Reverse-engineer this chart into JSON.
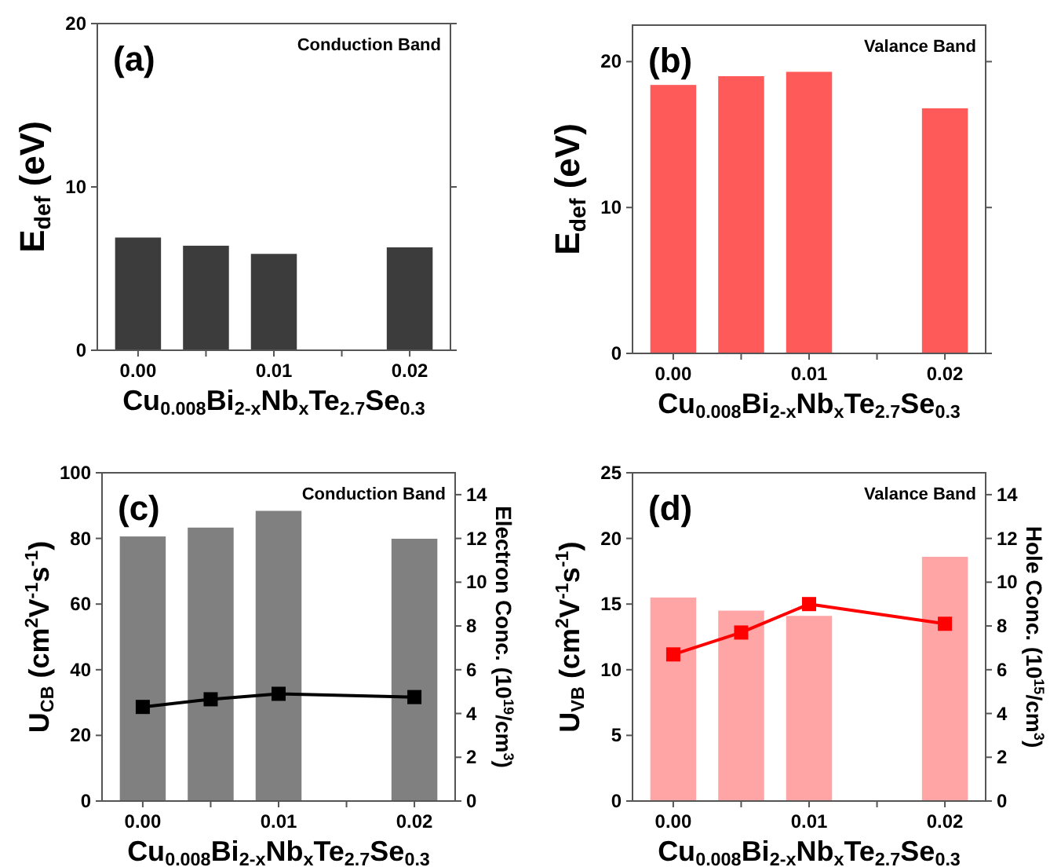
{
  "chart_data": [
    {
      "type": "bar",
      "x": [
        0,
        0.005,
        0.01,
        0.02
      ],
      "values": [
        6.9,
        6.4,
        5.9,
        6.3
      ],
      "color": "#3c3c3c",
      "xlim": [
        -0.003,
        0.023
      ],
      "xticks": [
        {
          "value": 0,
          "label": "0.00"
        },
        {
          "value": 0.005,
          "label": null
        },
        {
          "value": 0.01,
          "label": "0.01"
        },
        {
          "value": 0.015,
          "label": null
        },
        {
          "value": 0.02,
          "label": "0.02"
        }
      ],
      "ylim": [
        0,
        20
      ],
      "yticks": [
        0,
        10,
        20
      ],
      "xlabel": "Cu$_{0.008}$Bi$_{2-x}$Nb$_{x}$Te$_{2.7}$Se$_{0.3}$",
      "ylabel": "E$_{def}$ (eV)",
      "annotations": [
        "(a)",
        "Conduction Band"
      ],
      "grid": false
    },
    {
      "type": "bar",
      "x": [
        0,
        0.005,
        0.01,
        0.02
      ],
      "values": [
        18.4,
        19.0,
        19.3,
        16.8
      ],
      "color": "#ff5a5a",
      "xlim": [
        -0.003,
        0.023
      ],
      "xticks": [
        {
          "value": 0,
          "label": "0.00"
        },
        {
          "value": 0.005,
          "label": null
        },
        {
          "value": 0.01,
          "label": "0.01"
        },
        {
          "value": 0.015,
          "label": null
        },
        {
          "value": 0.02,
          "label": "0.02"
        }
      ],
      "ylim": [
        0,
        22.5
      ],
      "yticks": [
        0,
        10,
        20
      ],
      "xlabel": "Cu$_{0.008}$Bi$_{2-x}$Nb$_{x}$Te$_{2.7}$Se$_{0.3}$",
      "ylabel": "E$_{def}$ (eV)",
      "annotations": [
        "(b)",
        "Valance Band"
      ],
      "grid": false
    },
    {
      "type": "bar",
      "x": [
        0,
        0.005,
        0.01,
        0.02
      ],
      "series": [
        {
          "color": "#808080",
          "values": [
            80.6,
            83.3,
            88.4,
            79.9
          ]
        },
        {
          "type": "line",
          "axis": "y2",
          "color": "#000000",
          "values": [
            4.3,
            4.65,
            4.9,
            4.75
          ]
        }
      ],
      "marker": "square",
      "xlim": [
        -0.003,
        0.023
      ],
      "xticks": [
        {
          "value": 0,
          "label": "0.00"
        },
        {
          "value": 0.005,
          "label": null
        },
        {
          "value": 0.01,
          "label": "0.01"
        },
        {
          "value": 0.015,
          "label": null
        },
        {
          "value": 0.02,
          "label": "0.02"
        }
      ],
      "ylim": [
        0,
        100
      ],
      "yticks": [
        0,
        20,
        40,
        60,
        80,
        100
      ],
      "y2lim": [
        0,
        15
      ],
      "y2ticks": [
        0,
        2,
        4,
        6,
        8,
        10,
        12,
        14
      ],
      "xlabel": "Cu$_{0.008}$Bi$_{2-x}$Nb$_{x}$Te$_{2.7}$Se$_{0.3}$",
      "ylabel": "U$_{CB}$ (cm$^{2}$V$^{-1}$s$^{-1}$)",
      "y2label": "Electron Conc. (10$^{19}$/cm$^{3}$)",
      "annotations": [
        "(c)",
        "Conduction Band"
      ],
      "grid": false
    },
    {
      "type": "bar",
      "x": [
        0,
        0.005,
        0.01,
        0.02
      ],
      "series": [
        {
          "color": "#ffa5a5",
          "values": [
            15.5,
            14.5,
            14.1,
            18.6
          ]
        },
        {
          "type": "line",
          "axis": "y2",
          "color": "#ff0000",
          "values": [
            6.7,
            7.7,
            9.0,
            8.1
          ]
        }
      ],
      "marker": "square",
      "xlim": [
        -0.003,
        0.023
      ],
      "xticks": [
        {
          "value": 0,
          "label": "0.00"
        },
        {
          "value": 0.005,
          "label": null
        },
        {
          "value": 0.01,
          "label": "0.01"
        },
        {
          "value": 0.015,
          "label": null
        },
        {
          "value": 0.02,
          "label": "0.02"
        }
      ],
      "ylim": [
        0,
        25
      ],
      "yticks": [
        0,
        5,
        10,
        15,
        20,
        25
      ],
      "y2lim": [
        0,
        15
      ],
      "y2ticks": [
        0,
        2,
        4,
        6,
        8,
        10,
        12,
        14
      ],
      "xlabel": "Cu$_{0.008}$Bi$_{2-x}$Nb$_{x}$Te$_{2.7}$Se$_{0.3}$",
      "ylabel": "U$_{VB}$ (cm$^{2}$V$^{-1}$s$^{-1}$)",
      "y2label": "Hole Conc. (10$^{15}$/cm$^{3}$)",
      "annotations": [
        "(d)",
        "Valance Band"
      ],
      "grid": false
    }
  ]
}
